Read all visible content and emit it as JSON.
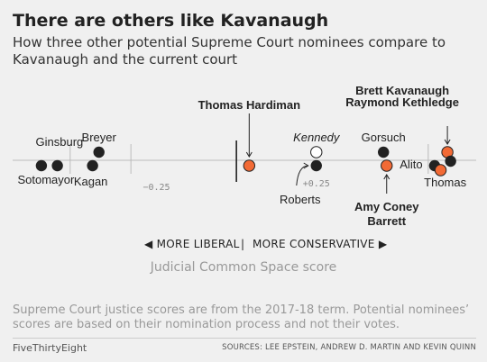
{
  "header": {
    "title": "There are others like Kavanaugh",
    "subtitle": "How three other potential Supreme Court nominees compare to Kavanaugh and the current court"
  },
  "chart_data": {
    "type": "scatter",
    "xlabel": "Judicial Common Space score",
    "xlim": [
      -0.7,
      0.75
    ],
    "ticks": [
      {
        "value": -0.25,
        "label": "−0.25"
      },
      {
        "value": 0.25,
        "label": "+0.25"
      }
    ],
    "center_value": 0,
    "direction_labels": {
      "left": "MORE LIBERAL",
      "separator": "|",
      "right": "MORE CONSERVATIVE"
    },
    "colors": {
      "justice": "#222222",
      "nominee": "#f26a35",
      "kennedy": "#ffffff",
      "axis": "#bbbbbb"
    },
    "points": [
      {
        "name": "Sotomayor",
        "x": -0.61,
        "row": "low",
        "group": "justice"
      },
      {
        "name": "Ginsburg",
        "x": -0.56,
        "row": "low",
        "group": "justice"
      },
      {
        "name": "Breyer",
        "x": -0.43,
        "row": "high",
        "group": "justice"
      },
      {
        "name": "Kagan",
        "x": -0.45,
        "row": "low",
        "group": "justice"
      },
      {
        "name": "Thomas Hardiman",
        "x": 0.04,
        "row": "low",
        "group": "nominee"
      },
      {
        "name": "Kennedy",
        "x": 0.25,
        "row": "high",
        "group": "kennedy"
      },
      {
        "name": "Roberts",
        "x": 0.25,
        "row": "low",
        "group": "justice"
      },
      {
        "name": "Gorsuch",
        "x": 0.46,
        "row": "high",
        "group": "justice"
      },
      {
        "name": "Amy Coney Barrett",
        "x": 0.47,
        "row": "low",
        "group": "nominee"
      },
      {
        "name": "Alito",
        "x": 0.62,
        "row": "low",
        "group": "justice"
      },
      {
        "name": "Brett Kavanaugh",
        "x": 0.66,
        "row": "high",
        "group": "nominee"
      },
      {
        "name": "Raymond Kethledge",
        "x": 0.65,
        "row": "lower",
        "group": "nominee"
      },
      {
        "name": "Thomas",
        "x": 0.67,
        "row": "low",
        "group": "justice"
      }
    ],
    "labels": [
      {
        "text": "Ginsburg",
        "point": "Ginsburg",
        "bold": false
      },
      {
        "text": "Sotomayor",
        "point": "Sotomayor",
        "bold": false
      },
      {
        "text": "Breyer",
        "point": "Breyer",
        "bold": false
      },
      {
        "text": "Kagan",
        "point": "Kagan",
        "bold": false
      },
      {
        "text": "Thomas Hardiman",
        "point": "Thomas Hardiman",
        "bold": true
      },
      {
        "text": "Kennedy",
        "point": "Kennedy",
        "bold": false,
        "italic": true
      },
      {
        "text": "Roberts",
        "point": "Roberts",
        "bold": false
      },
      {
        "text": "Gorsuch",
        "point": "Gorsuch",
        "bold": false
      },
      {
        "text": "Amy Coney",
        "point": "Amy Coney Barrett",
        "bold": true
      },
      {
        "text": "Barrett",
        "point": "Amy Coney Barrett",
        "bold": true
      },
      {
        "text": "Alito",
        "point": "Alito",
        "bold": false
      },
      {
        "text": "Brett Kavanaugh",
        "point": "Brett Kavanaugh",
        "bold": true
      },
      {
        "text": "Raymond Kethledge",
        "point": "Raymond Kethledge",
        "bold": true
      },
      {
        "text": "Thomas",
        "point": "Thomas",
        "bold": false
      }
    ]
  },
  "footer": {
    "note": "Supreme Court justice scores are from the 2017-18 term. Potential nominees’ scores are based on their nomination process and not their votes.",
    "brand": "FiveThirtyEight",
    "sources": "SOURCES: LEE EPSTEIN, ANDREW D. MARTIN AND KEVIN QUINN"
  }
}
